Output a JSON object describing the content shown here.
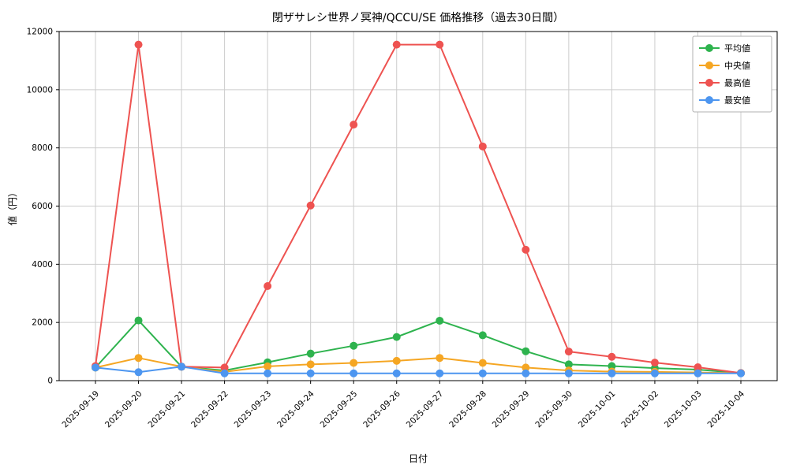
{
  "chart_data": {
    "type": "line",
    "title": "閉ザサレシ世界ノ冥神/QCCU/SE 価格推移（過去30日間）",
    "xlabel": "日付",
    "ylabel": "値（円）",
    "x": [
      "2025-09-19",
      "2025-09-20",
      "2025-09-21",
      "2025-09-22",
      "2025-09-23",
      "2025-09-24",
      "2025-09-25",
      "2025-09-26",
      "2025-09-27",
      "2025-09-28",
      "2025-09-29",
      "2025-09-30",
      "2025-10-01",
      "2025-10-02",
      "2025-10-03",
      "2025-10-04"
    ],
    "ylim": [
      0,
      12000
    ],
    "yticks": [
      0,
      2000,
      4000,
      6000,
      8000,
      10000,
      12000
    ],
    "grid": true,
    "legend_position": "upper right",
    "series": [
      {
        "name": "平均値",
        "color": "#2eb34e",
        "values": [
          450,
          2070,
          480,
          350,
          630,
          930,
          1200,
          1500,
          2060,
          1560,
          1010,
          560,
          500,
          430,
          380,
          260
        ]
      },
      {
        "name": "中央値",
        "color": "#f5a623",
        "values": [
          450,
          780,
          480,
          300,
          490,
          560,
          610,
          680,
          780,
          610,
          450,
          350,
          310,
          300,
          280,
          260
        ]
      },
      {
        "name": "最高値",
        "color": "#ee5351",
        "values": [
          500,
          11550,
          480,
          450,
          3250,
          6020,
          8800,
          11550,
          11550,
          8050,
          4500,
          1000,
          820,
          620,
          460,
          260
        ]
      },
      {
        "name": "最安値",
        "color": "#4d96f0",
        "values": [
          450,
          290,
          480,
          250,
          250,
          250,
          250,
          250,
          250,
          250,
          250,
          250,
          250,
          250,
          250,
          250
        ]
      }
    ]
  }
}
